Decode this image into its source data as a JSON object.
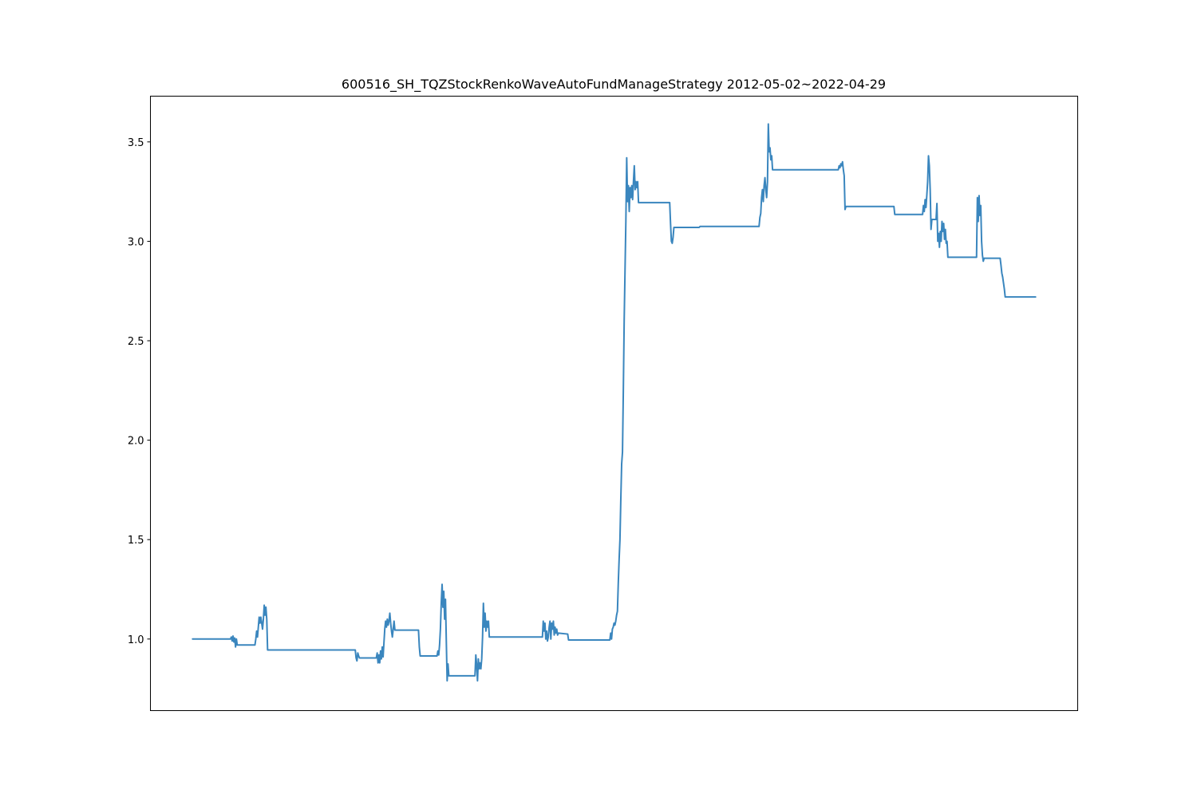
{
  "chart_data": {
    "type": "line",
    "title": "600516_SH_TQZStockRenkoWaveAutoFundManageStrategy   2012-05-02~2022-04-29",
    "xlabel": "",
    "ylabel": "",
    "x_ticks_visible": false,
    "grid": false,
    "ylim": [
      0.64,
      3.73
    ],
    "yticks": [
      1.0,
      1.5,
      2.0,
      2.5,
      3.0,
      3.5
    ],
    "ytick_labels": [
      "1.0",
      "1.5",
      "2.0",
      "2.5",
      "3.0",
      "3.5"
    ],
    "line_color": "#3a86be",
    "xlim": [
      -0.05,
      1.05
    ],
    "series": [
      {
        "values": [
          [
            0.0,
            1.0
          ],
          [
            0.045,
            1.0
          ],
          [
            0.046,
            1.01
          ],
          [
            0.047,
            0.99
          ],
          [
            0.048,
            1.015
          ],
          [
            0.049,
            0.985
          ],
          [
            0.05,
            1.005
          ],
          [
            0.051,
            0.96
          ],
          [
            0.052,
            1.0
          ],
          [
            0.053,
            0.97
          ],
          [
            0.074,
            0.97
          ],
          [
            0.075,
            1.0
          ],
          [
            0.076,
            1.04
          ],
          [
            0.077,
            1.01
          ],
          [
            0.078,
            1.06
          ],
          [
            0.079,
            1.11
          ],
          [
            0.08,
            1.08
          ],
          [
            0.081,
            1.11
          ],
          [
            0.082,
            1.08
          ],
          [
            0.083,
            1.05
          ],
          [
            0.084,
            1.1
          ],
          [
            0.085,
            1.17
          ],
          [
            0.086,
            1.12
          ],
          [
            0.087,
            1.16
          ],
          [
            0.088,
            1.1
          ],
          [
            0.089,
            0.945
          ],
          [
            0.193,
            0.945
          ],
          [
            0.194,
            0.905
          ],
          [
            0.195,
            0.89
          ],
          [
            0.196,
            0.93
          ],
          [
            0.197,
            0.915
          ],
          [
            0.198,
            0.905
          ],
          [
            0.218,
            0.905
          ],
          [
            0.219,
            0.93
          ],
          [
            0.22,
            0.88
          ],
          [
            0.221,
            0.92
          ],
          [
            0.222,
            0.88
          ],
          [
            0.223,
            0.94
          ],
          [
            0.224,
            0.9
          ],
          [
            0.225,
            0.96
          ],
          [
            0.226,
            0.91
          ],
          [
            0.227,
            0.98
          ],
          [
            0.228,
            1.05
          ],
          [
            0.229,
            1.09
          ],
          [
            0.23,
            1.06
          ],
          [
            0.231,
            1.1
          ],
          [
            0.232,
            1.07
          ],
          [
            0.233,
            1.09
          ],
          [
            0.234,
            1.13
          ],
          [
            0.235,
            1.08
          ],
          [
            0.236,
            1.04
          ],
          [
            0.237,
            1.01
          ],
          [
            0.238,
            1.05
          ],
          [
            0.239,
            1.09
          ],
          [
            0.24,
            1.045
          ],
          [
            0.268,
            1.045
          ],
          [
            0.269,
            0.96
          ],
          [
            0.27,
            0.915
          ],
          [
            0.29,
            0.915
          ],
          [
            0.291,
            0.94
          ],
          [
            0.292,
            0.92
          ],
          [
            0.293,
            0.97
          ],
          [
            0.294,
            1.05
          ],
          [
            0.295,
            1.18
          ],
          [
            0.296,
            1.275
          ],
          [
            0.297,
            1.16
          ],
          [
            0.298,
            1.24
          ],
          [
            0.299,
            1.1
          ],
          [
            0.3,
            1.2
          ],
          [
            0.301,
            0.99
          ],
          [
            0.302,
            0.79
          ],
          [
            0.303,
            0.875
          ],
          [
            0.304,
            0.815
          ],
          [
            0.335,
            0.815
          ],
          [
            0.336,
            0.92
          ],
          [
            0.337,
            0.87
          ],
          [
            0.338,
            0.79
          ],
          [
            0.339,
            0.9
          ],
          [
            0.34,
            0.85
          ],
          [
            0.341,
            0.88
          ],
          [
            0.342,
            0.85
          ],
          [
            0.343,
            0.9
          ],
          [
            0.344,
            1.01
          ],
          [
            0.345,
            1.18
          ],
          [
            0.346,
            1.06
          ],
          [
            0.347,
            1.13
          ],
          [
            0.348,
            1.04
          ],
          [
            0.349,
            1.09
          ],
          [
            0.35,
            1.06
          ],
          [
            0.351,
            1.09
          ],
          [
            0.352,
            1.01
          ],
          [
            0.415,
            1.01
          ],
          [
            0.416,
            1.09
          ],
          [
            0.417,
            1.04
          ],
          [
            0.418,
            1.08
          ],
          [
            0.419,
            1.0
          ],
          [
            0.42,
            1.04
          ],
          [
            0.421,
            0.99
          ],
          [
            0.422,
            1.01
          ],
          [
            0.423,
            1.06
          ],
          [
            0.424,
            1.09
          ],
          [
            0.425,
            1.0
          ],
          [
            0.426,
            1.08
          ],
          [
            0.427,
            1.05
          ],
          [
            0.428,
            1.09
          ],
          [
            0.429,
            1.02
          ],
          [
            0.43,
            1.06
          ],
          [
            0.431,
            1.03
          ],
          [
            0.432,
            1.05
          ],
          [
            0.433,
            1.02
          ],
          [
            0.434,
            1.03
          ],
          [
            0.445,
            1.025
          ],
          [
            0.446,
            0.995
          ],
          [
            0.495,
            0.995
          ],
          [
            0.496,
            1.03
          ],
          [
            0.497,
            1.0
          ],
          [
            0.498,
            1.05
          ],
          [
            0.499,
            1.06
          ],
          [
            0.5,
            1.08
          ],
          [
            0.501,
            1.07
          ],
          [
            0.502,
            1.09
          ],
          [
            0.503,
            1.12
          ],
          [
            0.504,
            1.14
          ],
          [
            0.505,
            1.28
          ],
          [
            0.506,
            1.4
          ],
          [
            0.507,
            1.5
          ],
          [
            0.508,
            1.7
          ],
          [
            0.509,
            1.88
          ],
          [
            0.51,
            1.94
          ],
          [
            0.511,
            2.25
          ],
          [
            0.512,
            2.6
          ],
          [
            0.513,
            2.85
          ],
          [
            0.514,
            3.1
          ],
          [
            0.515,
            3.42
          ],
          [
            0.516,
            3.2
          ],
          [
            0.517,
            3.28
          ],
          [
            0.518,
            3.15
          ],
          [
            0.519,
            3.27
          ],
          [
            0.52,
            3.22
          ],
          [
            0.521,
            3.28
          ],
          [
            0.522,
            3.21
          ],
          [
            0.523,
            3.3
          ],
          [
            0.524,
            3.38
          ],
          [
            0.525,
            3.26
          ],
          [
            0.526,
            3.3
          ],
          [
            0.527,
            3.27
          ],
          [
            0.528,
            3.3
          ],
          [
            0.529,
            3.195
          ],
          [
            0.566,
            3.195
          ],
          [
            0.567,
            3.09
          ],
          [
            0.568,
            3.0
          ],
          [
            0.569,
            2.99
          ],
          [
            0.57,
            3.02
          ],
          [
            0.571,
            3.07
          ],
          [
            0.601,
            3.07
          ],
          [
            0.602,
            3.075
          ],
          [
            0.672,
            3.075
          ],
          [
            0.673,
            3.12
          ],
          [
            0.674,
            3.14
          ],
          [
            0.675,
            3.22
          ],
          [
            0.676,
            3.26
          ],
          [
            0.677,
            3.2
          ],
          [
            0.678,
            3.28
          ],
          [
            0.679,
            3.32
          ],
          [
            0.68,
            3.26
          ],
          [
            0.681,
            3.22
          ],
          [
            0.682,
            3.3
          ],
          [
            0.683,
            3.59
          ],
          [
            0.684,
            3.45
          ],
          [
            0.685,
            3.47
          ],
          [
            0.686,
            3.41
          ],
          [
            0.687,
            3.43
          ],
          [
            0.688,
            3.36
          ],
          [
            0.766,
            3.36
          ],
          [
            0.767,
            3.38
          ],
          [
            0.768,
            3.37
          ],
          [
            0.769,
            3.39
          ],
          [
            0.77,
            3.38
          ],
          [
            0.771,
            3.4
          ],
          [
            0.772,
            3.36
          ],
          [
            0.773,
            3.33
          ],
          [
            0.774,
            3.16
          ],
          [
            0.775,
            3.175
          ],
          [
            0.832,
            3.175
          ],
          [
            0.833,
            3.135
          ],
          [
            0.866,
            3.135
          ],
          [
            0.867,
            3.18
          ],
          [
            0.868,
            3.15
          ],
          [
            0.869,
            3.21
          ],
          [
            0.87,
            3.17
          ],
          [
            0.871,
            3.23
          ],
          [
            0.872,
            3.3
          ],
          [
            0.873,
            3.43
          ],
          [
            0.874,
            3.38
          ],
          [
            0.875,
            3.26
          ],
          [
            0.876,
            3.06
          ],
          [
            0.877,
            3.11
          ],
          [
            0.882,
            3.11
          ],
          [
            0.883,
            3.19
          ],
          [
            0.884,
            3.0
          ],
          [
            0.885,
            3.04
          ],
          [
            0.886,
            2.97
          ],
          [
            0.887,
            3.05
          ],
          [
            0.888,
            3.0
          ],
          [
            0.889,
            3.1
          ],
          [
            0.89,
            3.05
          ],
          [
            0.891,
            3.09
          ],
          [
            0.892,
            3.01
          ],
          [
            0.893,
            3.06
          ],
          [
            0.894,
            2.99
          ],
          [
            0.895,
            3.0
          ],
          [
            0.896,
            2.92
          ],
          [
            0.93,
            2.92
          ],
          [
            0.931,
            3.22
          ],
          [
            0.932,
            3.1
          ],
          [
            0.933,
            3.23
          ],
          [
            0.934,
            3.13
          ],
          [
            0.935,
            3.18
          ],
          [
            0.936,
            3.0
          ],
          [
            0.937,
            2.93
          ],
          [
            0.938,
            2.9
          ],
          [
            0.939,
            2.915
          ],
          [
            0.958,
            2.915
          ],
          [
            0.959,
            2.88
          ],
          [
            0.96,
            2.84
          ],
          [
            0.961,
            2.82
          ],
          [
            0.962,
            2.79
          ],
          [
            0.963,
            2.76
          ],
          [
            0.964,
            2.72
          ],
          [
            1.0,
            2.72
          ]
        ]
      }
    ]
  }
}
